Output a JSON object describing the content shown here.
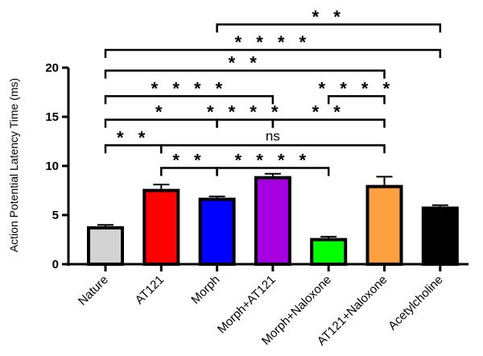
{
  "chart_data": {
    "type": "bar",
    "title": "",
    "xlabel": "",
    "ylabel": "Action Potential Latency Time (ms)",
    "ylim": [
      0,
      20
    ],
    "yticks": [
      0,
      5,
      10,
      15,
      20
    ],
    "grid": false,
    "categories": [
      "Nature",
      "AT121",
      "Morph",
      "Morph+AT121",
      "Morph+Naloxone",
      "AT121+Naloxone",
      "Acetylcholine"
    ],
    "values": [
      3.7,
      7.5,
      6.6,
      8.8,
      2.5,
      7.9,
      5.7
    ],
    "errors": [
      0.3,
      0.6,
      0.3,
      0.4,
      0.3,
      1.0,
      0.3
    ],
    "colors": [
      "#d3d3d3",
      "#ff0000",
      "#0000ff",
      "#a600e0",
      "#00ff00",
      "#ffa040",
      "#000000"
    ],
    "significance": [
      {
        "from": 2,
        "to": 6,
        "label": "* *",
        "y": 24.4
      },
      {
        "from": 0,
        "to": 6,
        "label": "* * * *",
        "y": 21.8
      },
      {
        "from": 0,
        "to": 5,
        "label": "* *",
        "y": 19.7
      },
      {
        "from": 0,
        "to": 3,
        "label": "* * * *",
        "y": 17.1
      },
      {
        "from": 4,
        "to": 5,
        "label": "* * * *",
        "y": 17.1
      },
      {
        "from": 0,
        "to": 2,
        "label": "*",
        "y": 14.7
      },
      {
        "from": 2,
        "to": 3,
        "label": "* * * *",
        "y": 14.7
      },
      {
        "from": 3,
        "to": 5,
        "label": "* *",
        "y": 14.7
      },
      {
        "from": 0,
        "to": 1,
        "label": "* *",
        "y": 12.1
      },
      {
        "from": 1,
        "to": 5,
        "label": "ns",
        "y": 12.1
      },
      {
        "from": 1,
        "to": 2,
        "label": "* *",
        "y": 9.8
      },
      {
        "from": 2,
        "to": 4,
        "label": "* * * *",
        "y": 9.8
      }
    ]
  }
}
